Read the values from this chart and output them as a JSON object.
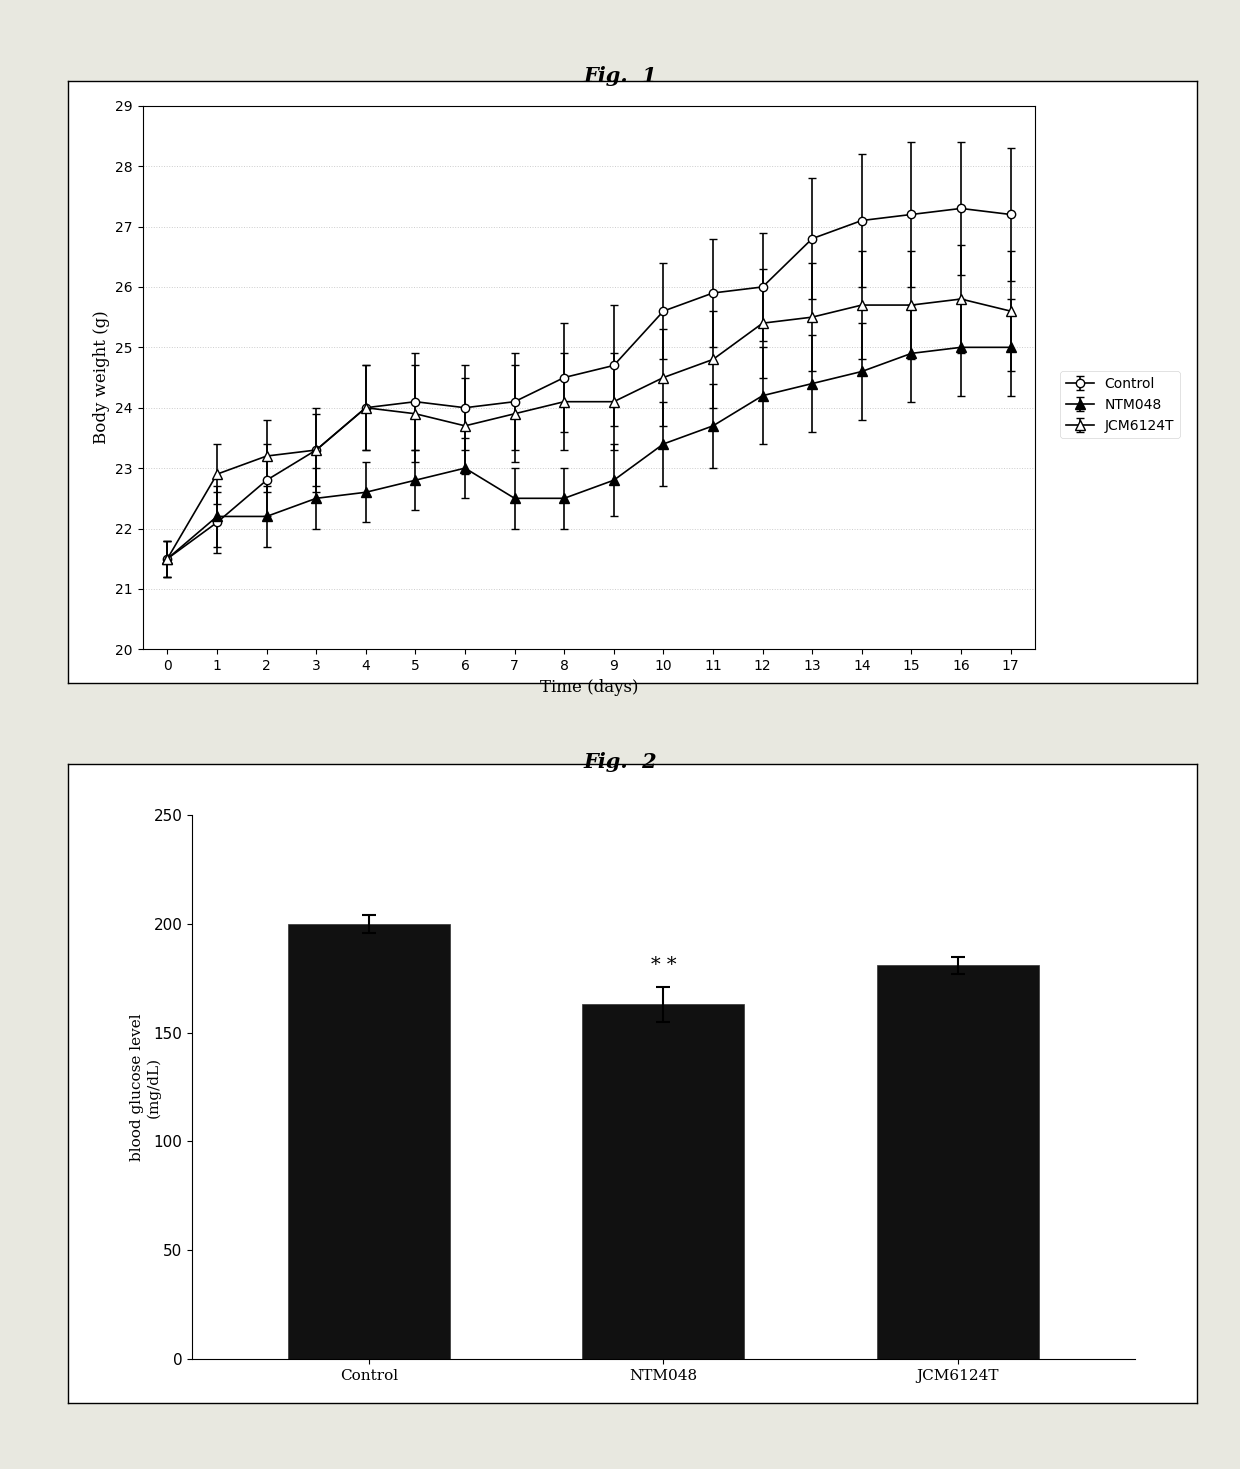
{
  "fig1_title": "Fig.  1",
  "fig2_title": "Fig.  2",
  "time": [
    0,
    1,
    2,
    3,
    4,
    5,
    6,
    7,
    8,
    9,
    10,
    11,
    12,
    13,
    14,
    15,
    16,
    17
  ],
  "control_y": [
    21.5,
    22.1,
    22.8,
    23.3,
    24.0,
    24.1,
    24.0,
    24.1,
    24.5,
    24.7,
    25.6,
    25.9,
    26.0,
    26.8,
    27.1,
    27.2,
    27.3,
    27.2
  ],
  "control_err": [
    0.3,
    0.5,
    0.6,
    0.7,
    0.7,
    0.8,
    0.7,
    0.8,
    0.9,
    1.0,
    0.8,
    0.9,
    0.9,
    1.0,
    1.1,
    1.2,
    1.1,
    1.1
  ],
  "ntm048_y": [
    21.5,
    22.2,
    22.2,
    22.5,
    22.6,
    22.8,
    23.0,
    22.5,
    22.5,
    22.8,
    23.4,
    23.7,
    24.2,
    24.4,
    24.6,
    24.9,
    25.0,
    25.0
  ],
  "ntm048_err": [
    0.3,
    0.5,
    0.5,
    0.5,
    0.5,
    0.5,
    0.5,
    0.5,
    0.5,
    0.6,
    0.7,
    0.7,
    0.8,
    0.8,
    0.8,
    0.8,
    0.8,
    0.8
  ],
  "jcm6124t_y": [
    21.5,
    22.9,
    23.2,
    23.3,
    24.0,
    23.9,
    23.7,
    23.9,
    24.1,
    24.1,
    24.5,
    24.8,
    25.4,
    25.5,
    25.7,
    25.7,
    25.8,
    25.6
  ],
  "jcm6124t_err": [
    0.3,
    0.5,
    0.6,
    0.6,
    0.7,
    0.8,
    0.8,
    0.8,
    0.8,
    0.8,
    0.8,
    0.8,
    0.9,
    0.9,
    0.9,
    0.9,
    0.9,
    1.0
  ],
  "fig1_ylabel": "Body weight (g)",
  "fig1_xlabel": "Time (days)",
  "fig1_ylim": [
    20,
    29
  ],
  "fig1_yticks": [
    20,
    21,
    22,
    23,
    24,
    25,
    26,
    27,
    28,
    29
  ],
  "fig1_xticks": [
    0,
    1,
    2,
    3,
    4,
    5,
    6,
    7,
    8,
    9,
    10,
    11,
    12,
    13,
    14,
    15,
    16,
    17
  ],
  "bar_categories": [
    "Control",
    "NTM048",
    "JCM6124T"
  ],
  "bar_values": [
    200,
    163,
    181
  ],
  "bar_errors": [
    4,
    8,
    4
  ],
  "bar_annotation": "* *",
  "fig2_ylabel_line1": "blood glucose level",
  "fig2_ylabel_line2": "(mg/dL)",
  "fig2_ylim": [
    0,
    250
  ],
  "fig2_yticks": [
    0,
    50,
    100,
    150,
    200,
    250
  ],
  "bar_color": "#111111",
  "line_color": "#000000",
  "background_color": "#e8e8e0",
  "plot_bg": "#ffffff",
  "box_color": "#cccccc"
}
